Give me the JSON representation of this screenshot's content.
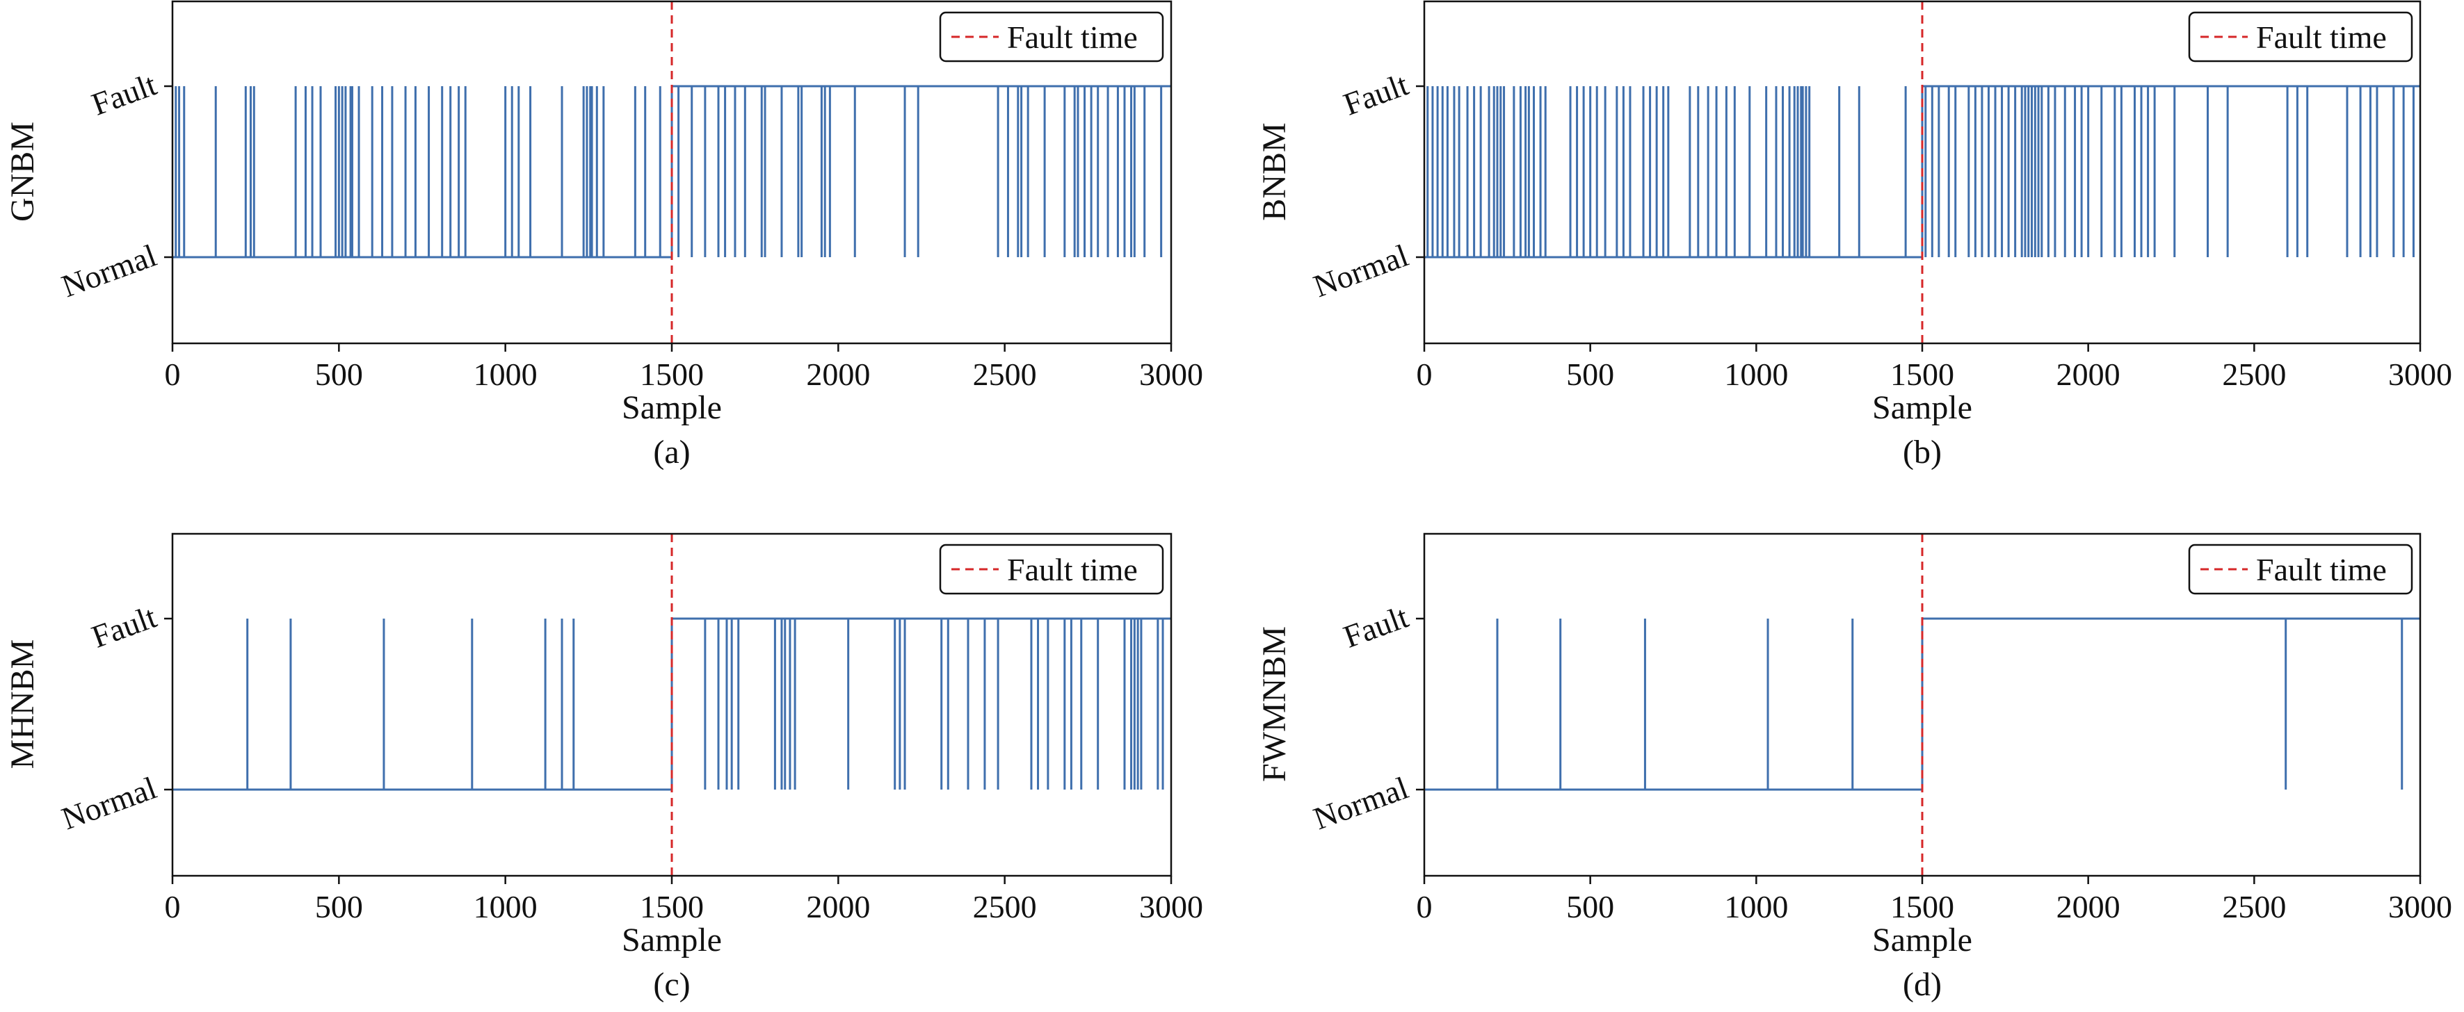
{
  "figure": {
    "subplot_labels": [
      "(a)",
      "(b)",
      "(c)",
      "(d)"
    ]
  },
  "colors": {
    "signal": "#3f6fad",
    "fault_line": "#d62728",
    "axis": "#111111"
  },
  "chart_data": [
    {
      "type": "line",
      "panel": "(a)",
      "xlabel": "Sample",
      "ylabel": "GNBM",
      "xlim": [
        0,
        3000
      ],
      "xticks": [
        0,
        500,
        1000,
        1500,
        2000,
        2500,
        3000
      ],
      "ycategories": [
        "Normal",
        "Fault"
      ],
      "legend": {
        "label": "Fault time",
        "placement": "top-right"
      },
      "fault_time": 1500,
      "series": [
        {
          "baseline": "Normal",
          "switch_sample": 1500,
          "spikes_to_fault_before_switch": [
            10,
            20,
            35,
            130,
            220,
            235,
            245,
            370,
            400,
            420,
            445,
            490,
            500,
            510,
            520,
            535,
            540,
            560,
            600,
            630,
            660,
            700,
            730,
            770,
            810,
            835,
            860,
            880,
            1000,
            1020,
            1040,
            1075,
            1170,
            1235,
            1245,
            1255,
            1260,
            1275,
            1295,
            1390,
            1420,
            1465
          ],
          "dips_to_normal_after_switch": [
            1520,
            1560,
            1600,
            1640,
            1660,
            1690,
            1720,
            1770,
            1780,
            1830,
            1880,
            1890,
            1950,
            1960,
            1975,
            2050,
            2200,
            2240,
            2480,
            2510,
            2540,
            2550,
            2570,
            2620,
            2680,
            2710,
            2720,
            2740,
            2760,
            2780,
            2810,
            2840,
            2860,
            2880,
            2890,
            2920,
            2970
          ]
        }
      ]
    },
    {
      "type": "line",
      "panel": "(b)",
      "xlabel": "Sample",
      "ylabel": "BNBM",
      "xlim": [
        0,
        3000
      ],
      "xticks": [
        0,
        500,
        1000,
        1500,
        2000,
        2500,
        3000
      ],
      "ycategories": [
        "Normal",
        "Fault"
      ],
      "legend": {
        "label": "Fault time",
        "placement": "top-right"
      },
      "fault_time": 1500,
      "series": [
        {
          "baseline": "Normal",
          "switch_sample": 1500,
          "spikes_to_fault_before_switch": [
            10,
            25,
            40,
            55,
            70,
            90,
            105,
            130,
            150,
            170,
            195,
            210,
            220,
            230,
            240,
            270,
            290,
            305,
            315,
            330,
            350,
            365,
            440,
            460,
            480,
            500,
            520,
            545,
            580,
            600,
            620,
            660,
            680,
            700,
            720,
            735,
            800,
            825,
            855,
            880,
            910,
            935,
            980,
            1030,
            1060,
            1080,
            1100,
            1115,
            1125,
            1135,
            1140,
            1150,
            1160,
            1250,
            1310,
            1450
          ],
          "dips_to_normal_after_switch": [
            1510,
            1530,
            1550,
            1580,
            1600,
            1640,
            1660,
            1680,
            1700,
            1720,
            1740,
            1760,
            1780,
            1800,
            1810,
            1820,
            1830,
            1840,
            1850,
            1860,
            1880,
            1900,
            1930,
            1960,
            1980,
            2000,
            2040,
            2080,
            2100,
            2140,
            2160,
            2180,
            2200,
            2260,
            2360,
            2420,
            2600,
            2630,
            2660,
            2780,
            2820,
            2850,
            2870,
            2920,
            2950,
            2980
          ]
        }
      ]
    },
    {
      "type": "line",
      "panel": "(c)",
      "xlabel": "Sample",
      "ylabel": "MHNBM",
      "xlim": [
        0,
        3000
      ],
      "xticks": [
        0,
        500,
        1000,
        1500,
        2000,
        2500,
        3000
      ],
      "ycategories": [
        "Normal",
        "Fault"
      ],
      "legend": {
        "label": "Fault time",
        "placement": "top-right"
      },
      "fault_time": 1500,
      "series": [
        {
          "baseline": "Normal",
          "switch_sample": 1500,
          "spikes_to_fault_before_switch": [
            225,
            355,
            635,
            900,
            1120,
            1170,
            1205
          ],
          "dips_to_normal_after_switch": [
            1600,
            1640,
            1665,
            1680,
            1700,
            1810,
            1830,
            1840,
            1855,
            1870,
            2030,
            2170,
            2185,
            2200,
            2310,
            2330,
            2390,
            2440,
            2480,
            2580,
            2600,
            2630,
            2680,
            2700,
            2730,
            2780,
            2860,
            2880,
            2890,
            2900,
            2910,
            2960,
            2975
          ]
        }
      ]
    },
    {
      "type": "line",
      "panel": "(d)",
      "xlabel": "Sample",
      "ylabel": "FWMNBM",
      "xlim": [
        0,
        3000
      ],
      "xticks": [
        0,
        500,
        1000,
        1500,
        2000,
        2500,
        3000
      ],
      "ycategories": [
        "Normal",
        "Fault"
      ],
      "legend": {
        "label": "Fault time",
        "placement": "top-right"
      },
      "fault_time": 1500,
      "series": [
        {
          "baseline": "Normal",
          "switch_sample": 1500,
          "spikes_to_fault_before_switch": [
            220,
            410,
            665,
            1035,
            1290
          ],
          "dips_to_normal_after_switch": [
            2595,
            2945
          ]
        }
      ]
    }
  ]
}
